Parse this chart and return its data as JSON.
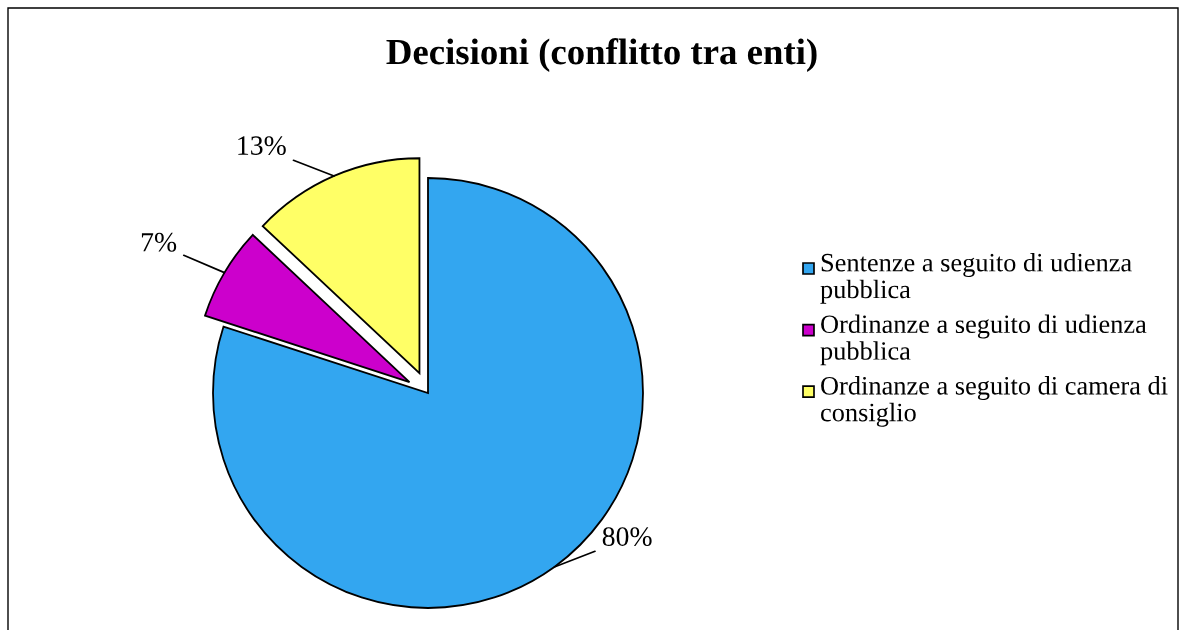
{
  "chart_data": {
    "type": "pie",
    "title": "Decisioni (conflitto tra enti)",
    "categories": [
      "Sentenze a seguito di udienza pubblica",
      "Ordinanze a seguito di udienza pubblica",
      "Ordinanze a seguito di camera di consiglio"
    ],
    "values": [
      80,
      7,
      13
    ],
    "colors": [
      "#33a6f0",
      "#cc00cc",
      "#ffff66"
    ],
    "value_labels": [
      "80%",
      "7%",
      "13%"
    ],
    "legend": "right"
  }
}
